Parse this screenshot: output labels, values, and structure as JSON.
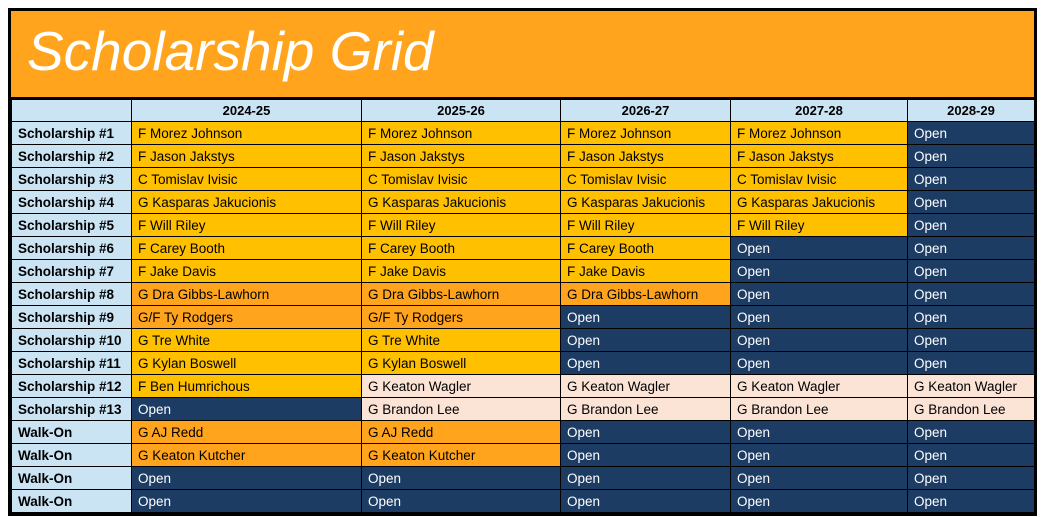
{
  "title": "Scholarship Grid",
  "colors": {
    "banner_background": "#FFA41C",
    "header_background": "#CBE4F4",
    "label_background": "#CBE4F4",
    "header_text": "#000000",
    "border": "#000000"
  },
  "cell_styles": {
    "gold": {
      "background": "#FFC000",
      "text": "#000000"
    },
    "orange": {
      "background": "#FFA41C",
      "text": "#000000"
    },
    "pink": {
      "background": "#FBE3D6",
      "text": "#000000"
    },
    "open": {
      "background": "#1D3C63",
      "text": "#FFFFFF"
    }
  },
  "columns": [
    "2024-25",
    "2025-26",
    "2026-27",
    "2027-28",
    "2028-29"
  ],
  "rows": [
    {
      "label": "Scholarship #1",
      "cells": [
        {
          "text": "F Morez Johnson",
          "style": "gold"
        },
        {
          "text": "F Morez Johnson",
          "style": "gold"
        },
        {
          "text": "F Morez Johnson",
          "style": "gold"
        },
        {
          "text": "F Morez Johnson",
          "style": "gold"
        },
        {
          "text": "Open",
          "style": "open"
        }
      ]
    },
    {
      "label": "Scholarship #2",
      "cells": [
        {
          "text": "F Jason Jakstys",
          "style": "gold"
        },
        {
          "text": "F Jason Jakstys",
          "style": "gold"
        },
        {
          "text": "F Jason Jakstys",
          "style": "gold"
        },
        {
          "text": "F Jason Jakstys",
          "style": "gold"
        },
        {
          "text": "Open",
          "style": "open"
        }
      ]
    },
    {
      "label": "Scholarship #3",
      "cells": [
        {
          "text": "C Tomislav Ivisic",
          "style": "gold"
        },
        {
          "text": "C Tomislav Ivisic",
          "style": "gold"
        },
        {
          "text": "C Tomislav Ivisic",
          "style": "gold"
        },
        {
          "text": "C Tomislav Ivisic",
          "style": "gold"
        },
        {
          "text": "Open",
          "style": "open"
        }
      ]
    },
    {
      "label": "Scholarship #4",
      "cells": [
        {
          "text": "G Kasparas Jakucionis",
          "style": "gold"
        },
        {
          "text": "G Kasparas Jakucionis",
          "style": "gold"
        },
        {
          "text": "G Kasparas Jakucionis",
          "style": "gold"
        },
        {
          "text": "G Kasparas Jakucionis",
          "style": "gold"
        },
        {
          "text": "Open",
          "style": "open"
        }
      ]
    },
    {
      "label": "Scholarship #5",
      "cells": [
        {
          "text": "F Will Riley",
          "style": "gold"
        },
        {
          "text": "F Will Riley",
          "style": "gold"
        },
        {
          "text": "F Will Riley",
          "style": "gold"
        },
        {
          "text": "F Will Riley",
          "style": "gold"
        },
        {
          "text": "Open",
          "style": "open"
        }
      ]
    },
    {
      "label": "Scholarship #6",
      "cells": [
        {
          "text": "F Carey Booth",
          "style": "gold"
        },
        {
          "text": "F Carey Booth",
          "style": "gold"
        },
        {
          "text": "F Carey Booth",
          "style": "gold"
        },
        {
          "text": "Open",
          "style": "open"
        },
        {
          "text": "Open",
          "style": "open"
        }
      ]
    },
    {
      "label": "Scholarship #7",
      "cells": [
        {
          "text": "F Jake Davis",
          "style": "gold"
        },
        {
          "text": "F Jake Davis",
          "style": "gold"
        },
        {
          "text": "F Jake Davis",
          "style": "gold"
        },
        {
          "text": "Open",
          "style": "open"
        },
        {
          "text": "Open",
          "style": "open"
        }
      ]
    },
    {
      "label": "Scholarship #8",
      "cells": [
        {
          "text": "G Dra Gibbs-Lawhorn",
          "style": "orange"
        },
        {
          "text": "G Dra Gibbs-Lawhorn",
          "style": "orange"
        },
        {
          "text": "G Dra Gibbs-Lawhorn",
          "style": "orange"
        },
        {
          "text": "Open",
          "style": "open"
        },
        {
          "text": "Open",
          "style": "open"
        }
      ]
    },
    {
      "label": "Scholarship #9",
      "cells": [
        {
          "text": "G/F Ty Rodgers",
          "style": "orange"
        },
        {
          "text": "G/F Ty Rodgers",
          "style": "orange"
        },
        {
          "text": "Open",
          "style": "open"
        },
        {
          "text": "Open",
          "style": "open"
        },
        {
          "text": "Open",
          "style": "open"
        }
      ]
    },
    {
      "label": "Scholarship #10",
      "cells": [
        {
          "text": "G Tre White",
          "style": "gold"
        },
        {
          "text": "G Tre White",
          "style": "gold"
        },
        {
          "text": "Open",
          "style": "open"
        },
        {
          "text": "Open",
          "style": "open"
        },
        {
          "text": "Open",
          "style": "open"
        }
      ]
    },
    {
      "label": "Scholarship #11",
      "cells": [
        {
          "text": "G Kylan Boswell",
          "style": "gold"
        },
        {
          "text": "G Kylan Boswell",
          "style": "gold"
        },
        {
          "text": "Open",
          "style": "open"
        },
        {
          "text": "Open",
          "style": "open"
        },
        {
          "text": "Open",
          "style": "open"
        }
      ]
    },
    {
      "label": "Scholarship #12",
      "cells": [
        {
          "text": "F Ben Humrichous",
          "style": "gold"
        },
        {
          "text": "G Keaton Wagler",
          "style": "pink"
        },
        {
          "text": "G Keaton Wagler",
          "style": "pink"
        },
        {
          "text": "G Keaton Wagler",
          "style": "pink"
        },
        {
          "text": "G Keaton Wagler",
          "style": "pink"
        }
      ]
    },
    {
      "label": "Scholarship #13",
      "cells": [
        {
          "text": "Open",
          "style": "open"
        },
        {
          "text": "G Brandon Lee",
          "style": "pink"
        },
        {
          "text": "G Brandon Lee",
          "style": "pink"
        },
        {
          "text": "G Brandon Lee",
          "style": "pink"
        },
        {
          "text": "G Brandon Lee",
          "style": "pink"
        }
      ]
    },
    {
      "label": "Walk-On",
      "cells": [
        {
          "text": "G AJ Redd",
          "style": "orange"
        },
        {
          "text": "G AJ Redd",
          "style": "orange"
        },
        {
          "text": "Open",
          "style": "open"
        },
        {
          "text": "Open",
          "style": "open"
        },
        {
          "text": "Open",
          "style": "open"
        }
      ]
    },
    {
      "label": "Walk-On",
      "cells": [
        {
          "text": "G Keaton Kutcher",
          "style": "orange"
        },
        {
          "text": "G Keaton Kutcher",
          "style": "orange"
        },
        {
          "text": "Open",
          "style": "open"
        },
        {
          "text": "Open",
          "style": "open"
        },
        {
          "text": "Open",
          "style": "open"
        }
      ]
    },
    {
      "label": "Walk-On",
      "cells": [
        {
          "text": "Open",
          "style": "open"
        },
        {
          "text": "Open",
          "style": "open"
        },
        {
          "text": "Open",
          "style": "open"
        },
        {
          "text": "Open",
          "style": "open"
        },
        {
          "text": "Open",
          "style": "open"
        }
      ]
    },
    {
      "label": "Walk-On",
      "cells": [
        {
          "text": "Open",
          "style": "open"
        },
        {
          "text": "Open",
          "style": "open"
        },
        {
          "text": "Open",
          "style": "open"
        },
        {
          "text": "Open",
          "style": "open"
        },
        {
          "text": "Open",
          "style": "open"
        }
      ]
    }
  ]
}
